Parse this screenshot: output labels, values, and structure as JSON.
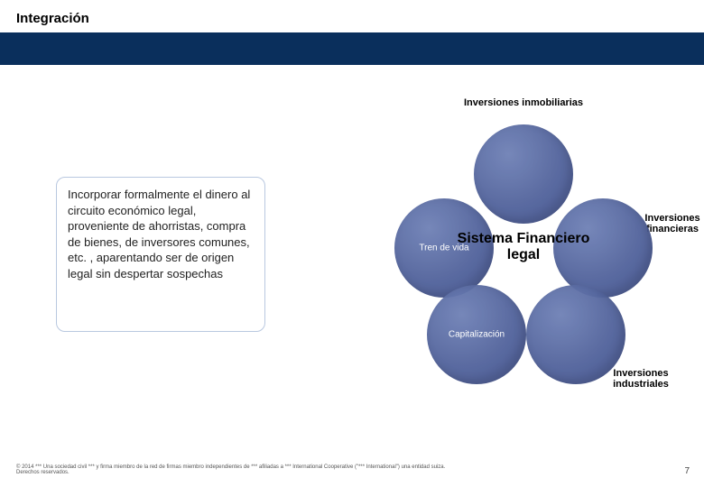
{
  "title": "Integración",
  "description": "Incorporar formalmente el dinero al circuito económico legal, proveniente de ahorristas, compra de bienes, de inversores comunes, etc. , aparentando ser de origen legal sin despertar sospechas",
  "center_label": "Sistema Financiero legal",
  "petals": {
    "tren_de_vida": "Tren de vida",
    "capitalizacion": "Capitalización"
  },
  "outer_labels": {
    "top": "Inversiones inmobiliarias",
    "right": "Inversiones financieras",
    "bottom_right": "Inversiones industriales"
  },
  "colors": {
    "strip": "#0a2f5c",
    "petal_light": "#6f81b6",
    "petal_dark": "#4a5b95",
    "desc_border": "#b9c8e0"
  },
  "footer": "© 2014 *** Una sociedad civil *** y firma miembro de la red de firmas miembro independientes de *** afiliadas a *** International Cooperative (\"*** International\") una entidad suiza. Derechos reservados.",
  "page_number": "7"
}
